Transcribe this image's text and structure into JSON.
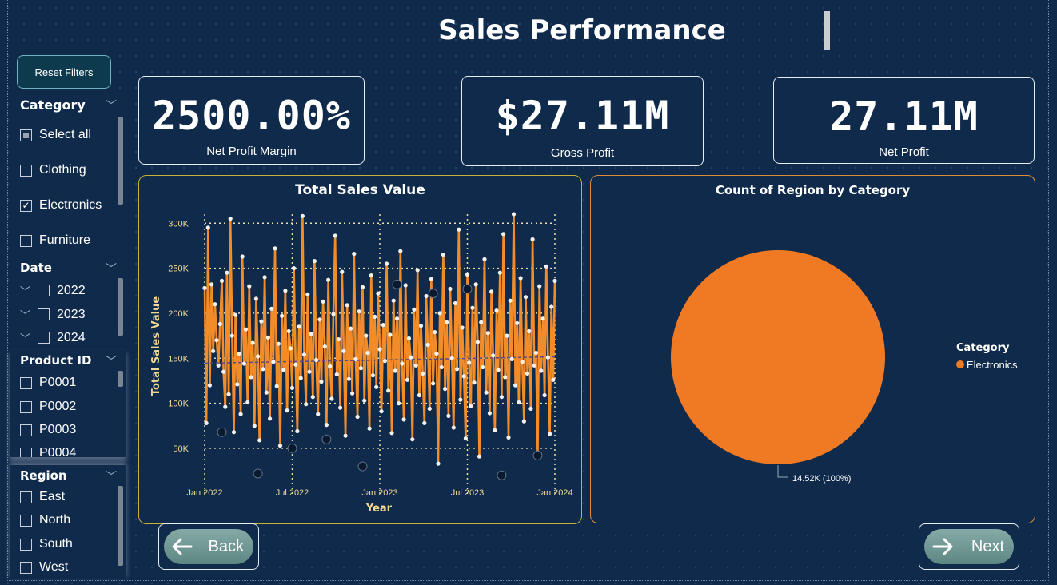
{
  "header": {
    "title": "Sales Performance"
  },
  "reset_button": "Reset Filters",
  "slicers": {
    "category": {
      "title": "Category",
      "options": [
        "Select all",
        "Clothing",
        "Electronics",
        "Furniture"
      ]
    },
    "date": {
      "title": "Date",
      "options": [
        "2022",
        "2023",
        "2024"
      ]
    },
    "product_id": {
      "title": "Product ID",
      "options": [
        "P0001",
        "P0002",
        "P0003",
        "P0004"
      ]
    },
    "region": {
      "title": "Region",
      "options": [
        "East",
        "North",
        "South",
        "West"
      ]
    }
  },
  "kpis": [
    {
      "value": "2500.00%",
      "label": "Net Profit Margin"
    },
    {
      "value": "$27.11M",
      "label": "Gross Profit"
    },
    {
      "value": "27.11M",
      "label": "Net Profit"
    }
  ],
  "nav": {
    "back": "Back",
    "next": "Next"
  },
  "colors": {
    "background": "#0f2a4b",
    "line": "#f28c28",
    "accent_line_panel": "#c9b037",
    "pie_panel": "#e08a3c",
    "pie": "#f07924"
  },
  "chart_data": [
    {
      "type": "line",
      "title": "Total Sales Value",
      "xlabel": "Year",
      "ylabel": "Total Sales Value",
      "x_ticks": [
        "Jan 2022",
        "Jul 2022",
        "Jan 2023",
        "Jul 2023",
        "Jan 2024"
      ],
      "y_ticks": [
        "50K",
        "100K",
        "150K",
        "200K",
        "250K",
        "300K"
      ],
      "ylim": [
        10000,
        310000
      ],
      "x_range": [
        "2022-01-01",
        "2023-12-31"
      ],
      "grid": true,
      "trend_line": 148000,
      "series": [
        {
          "values": [
            228000,
            78000,
            295000,
            120000,
            232000,
            158000,
            210000,
            170000,
            142000,
            188000,
            236000,
            135000,
            96000,
            245000,
            110000,
            305000,
            175000,
            68000,
            198000,
            121000,
            155000,
            88000,
            263000,
            144000,
            182000,
            101000,
            230000,
            129000,
            167000,
            75000,
            216000,
            152000,
            59000,
            191000,
            138000,
            240000,
            112000,
            173000,
            83000,
            205000,
            146000,
            272000,
            119000,
            166000,
            53000,
            197000,
            137000,
            225000,
            92000,
            180000,
            161000,
            117000,
            250000,
            143000,
            69000,
            185000,
            128000,
            308000,
            154000,
            99000,
            221000,
            135000,
            177000,
            107000,
            258000,
            148000,
            88000,
            193000,
            124000,
            213000,
            163000,
            76000,
            237000,
            141000,
            105000,
            199000,
            286000,
            132000,
            171000,
            95000,
            246000,
            158000,
            64000,
            209000,
            127000,
            183000,
            111000,
            266000,
            149000,
            85000,
            202000,
            139000,
            229000,
            103000,
            175000,
            156000,
            72000,
            242000,
            131000,
            196000,
            118000,
            222000,
            160000,
            91000,
            187000,
            147000,
            255000,
            114000,
            176000,
            67000,
            214000,
            136000,
            194000,
            100000,
            269000,
            144000,
            82000,
            231000,
            126000,
            172000,
            151000,
            60000,
            204000,
            142000,
            248000,
            109000,
            186000,
            133000,
            78000,
            219000,
            165000,
            94000,
            238000,
            122000,
            179000,
            155000,
            33000,
            200000,
            140000,
            265000,
            116000,
            190000,
            86000,
            227000,
            150000,
            73000,
            211000,
            138000,
            293000,
            104000,
            184000,
            130000,
            61000,
            243000,
            145000,
            97000,
            206000,
            123000,
            232000,
            168000,
            41000,
            190000,
            140000,
            260000,
            112000,
            178000,
            89000,
            224000,
            153000,
            70000,
            203000,
            137000,
            245000,
            107000,
            288000,
            129000,
            175000,
            62000,
            214000,
            149000,
            310000,
            120000,
            189000,
            101000,
            239000,
            146000,
            80000,
            218000,
            133000,
            180000,
            94000,
            282000,
            142000,
            156000,
            45000,
            230000,
            136000,
            194000,
            109000,
            252000,
            151000,
            66000,
            207000,
            126000,
            236000
          ]
        }
      ],
      "dark_markers": [
        68000,
        22000,
        50000,
        60000,
        30000,
        232000,
        222000,
        227000,
        20000,
        42000
      ]
    },
    {
      "type": "pie",
      "title": "Count of Region by Category",
      "legend_title": "Category",
      "legend_position": "right",
      "slices": [
        {
          "name": "Electronics",
          "value": 14520,
          "percent": 100
        }
      ],
      "data_label": "14.52K (100%)"
    }
  ]
}
